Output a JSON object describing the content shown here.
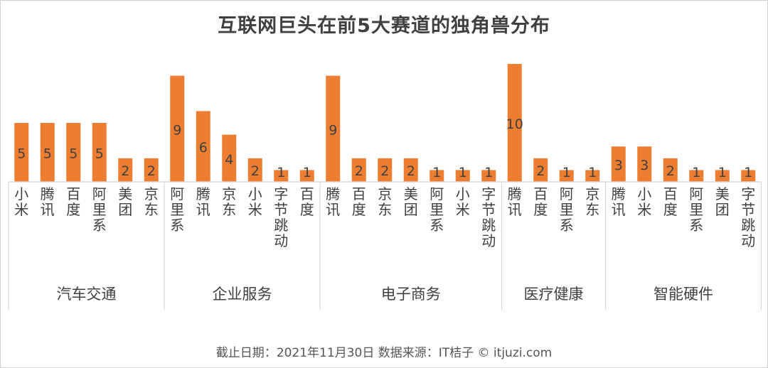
{
  "title": "互联网巨头在前5大赛道的独角兽分布",
  "footer": "截止日期：2021年11月30日   数据来源：IT桔子 © itjuzi.com",
  "colors": {
    "bar": "#ED7D31",
    "axis": "#D9D9D9",
    "text": "#404040"
  },
  "chart_data": {
    "type": "bar",
    "title": "互联网巨头在前5大赛道的独角兽分布",
    "xlabel": "",
    "ylabel": "",
    "grid": false,
    "groups": [
      {
        "name": "汽车交通",
        "items": [
          {
            "label": "小米",
            "value": 5
          },
          {
            "label": "腾讯",
            "value": 5
          },
          {
            "label": "百度",
            "value": 5
          },
          {
            "label": "阿里系",
            "value": 5
          },
          {
            "label": "美团",
            "value": 2
          },
          {
            "label": "京东",
            "value": 2
          }
        ]
      },
      {
        "name": "企业服务",
        "items": [
          {
            "label": "阿里系",
            "value": 9
          },
          {
            "label": "腾讯",
            "value": 6
          },
          {
            "label": "京东",
            "value": 4
          },
          {
            "label": "小米",
            "value": 2
          },
          {
            "label": "字节跳动",
            "value": 1
          },
          {
            "label": "百度",
            "value": 1
          }
        ]
      },
      {
        "name": "电子商务",
        "items": [
          {
            "label": "腾讯",
            "value": 9
          },
          {
            "label": "百度",
            "value": 2
          },
          {
            "label": "京东",
            "value": 2
          },
          {
            "label": "美团",
            "value": 2
          },
          {
            "label": "阿里系",
            "value": 1
          },
          {
            "label": "小米",
            "value": 1
          },
          {
            "label": "字节跳动",
            "value": 1
          }
        ]
      },
      {
        "name": "医疗健康",
        "items": [
          {
            "label": "腾讯",
            "value": 10
          },
          {
            "label": "百度",
            "value": 2
          },
          {
            "label": "阿里系",
            "value": 1
          },
          {
            "label": "京东",
            "value": 1
          }
        ]
      },
      {
        "name": "智能硬件",
        "items": [
          {
            "label": "腾讯",
            "value": 3
          },
          {
            "label": "小米",
            "value": 3
          },
          {
            "label": "百度",
            "value": 2
          },
          {
            "label": "阿里系",
            "value": 1
          },
          {
            "label": "美团",
            "value": 1
          },
          {
            "label": "字节跳动",
            "value": 1
          }
        ]
      }
    ]
  }
}
